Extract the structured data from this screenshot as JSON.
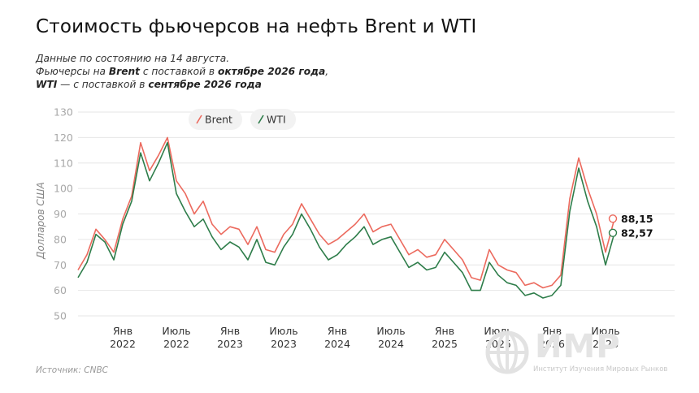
{
  "header": {
    "title": "Стоимость фьючерсов на нефть Brent и WTI",
    "subtitle_line1": "Данные по состоянию на 14 августа.",
    "sub2_a": "Фьючерсы на ",
    "sub2_b": "Brent",
    "sub2_c": " с поставкой в ",
    "sub2_d": "октябре 2026 года",
    "sub2_e": ",",
    "sub3_a": "WTI",
    "sub3_b": " — с поставкой в ",
    "sub3_c": "сентябре 2026 года"
  },
  "footer": {
    "source": "Источник: CNBC",
    "logo_word": "ИМР",
    "logo_sub": "Институт Изучения Мировых Рынков"
  },
  "colors": {
    "brent": "#ec6a5e",
    "wti": "#2e7d4a",
    "grid": "#e6e6e6",
    "logo": "#dedede"
  },
  "chart_data": {
    "type": "line",
    "ylabel": "Долларов США",
    "ylim": [
      50,
      130
    ],
    "yticks": [
      50,
      60,
      70,
      80,
      90,
      100,
      110,
      120,
      130
    ],
    "grid": true,
    "legend_position": "top-left",
    "x_start": "2021-08",
    "x_end": "2026-08",
    "xticks": [
      {
        "date": "2022-01",
        "line1": "Янв",
        "line2": "2022"
      },
      {
        "date": "2022-07",
        "line1": "Июль",
        "line2": "2022"
      },
      {
        "date": "2023-01",
        "line1": "Янв",
        "line2": "2023"
      },
      {
        "date": "2023-07",
        "line1": "Июль",
        "line2": "2023"
      },
      {
        "date": "2024-01",
        "line1": "Янв",
        "line2": "2024"
      },
      {
        "date": "2024-07",
        "line1": "Июль",
        "line2": "2024"
      },
      {
        "date": "2025-01",
        "line1": "Янв",
        "line2": "2025"
      },
      {
        "date": "2025-07",
        "line1": "Июль",
        "line2": "2025"
      },
      {
        "date": "2026-01",
        "line1": "Янв",
        "line2": "2026"
      },
      {
        "date": "2026-07",
        "line1": "Июль",
        "line2": "2026"
      }
    ],
    "x": [
      "2021-08",
      "2021-09",
      "2021-10",
      "2021-11",
      "2021-12",
      "2022-01",
      "2022-02",
      "2022-03",
      "2022-04",
      "2022-05",
      "2022-06",
      "2022-07",
      "2022-08",
      "2022-09",
      "2022-10",
      "2022-11",
      "2022-12",
      "2023-01",
      "2023-02",
      "2023-03",
      "2023-04",
      "2023-05",
      "2023-06",
      "2023-07",
      "2023-08",
      "2023-09",
      "2023-10",
      "2023-11",
      "2023-12",
      "2024-01",
      "2024-02",
      "2024-03",
      "2024-04",
      "2024-05",
      "2024-06",
      "2024-07",
      "2024-08",
      "2024-09",
      "2024-10",
      "2024-11",
      "2024-12",
      "2025-01",
      "2025-02",
      "2025-03",
      "2025-04",
      "2025-05",
      "2025-06",
      "2025-07",
      "2025-08",
      "2025-09",
      "2025-10",
      "2025-11",
      "2025-12",
      "2026-01",
      "2026-02",
      "2026-03",
      "2026-04",
      "2026-05",
      "2026-06",
      "2026-07",
      "2026-08"
    ],
    "series": [
      {
        "name": "Brent",
        "values": [
          68,
          74,
          84,
          80,
          75,
          88,
          97,
          118,
          107,
          113,
          120,
          103,
          98,
          90,
          95,
          86,
          82,
          85,
          84,
          78,
          85,
          76,
          75,
          82,
          86,
          94,
          88,
          82,
          78,
          80,
          83,
          86,
          90,
          83,
          85,
          86,
          80,
          74,
          76,
          73,
          74,
          80,
          76,
          72,
          65,
          64,
          76,
          70,
          68,
          67,
          62,
          63,
          61,
          62,
          66,
          96,
          112,
          100,
          90,
          75,
          88.15
        ]
      },
      {
        "name": "WTI",
        "values": [
          65,
          71,
          82,
          79,
          72,
          86,
          95,
          114,
          103,
          110,
          118,
          98,
          91,
          85,
          88,
          81,
          76,
          79,
          77,
          72,
          80,
          71,
          70,
          77,
          82,
          90,
          84,
          77,
          72,
          74,
          78,
          81,
          85,
          78,
          80,
          81,
          75,
          69,
          71,
          68,
          69,
          75,
          71,
          67,
          60,
          60,
          71,
          66,
          63,
          62,
          58,
          59,
          57,
          58,
          62,
          91,
          108,
          95,
          85,
          70,
          82.57
        ]
      }
    ],
    "end_labels": [
      "88,15",
      "82,57"
    ]
  }
}
